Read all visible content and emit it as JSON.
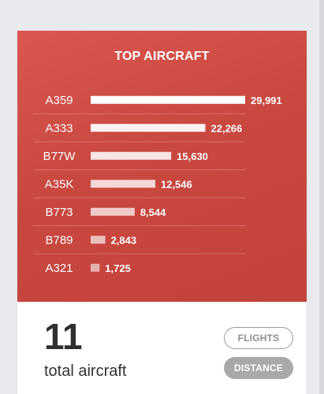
{
  "chart": {
    "title": "TOP AIRCRAFT"
  },
  "chart_data": {
    "type": "bar",
    "orientation": "horizontal",
    "title": "TOP AIRCRAFT",
    "categories": [
      "A359",
      "A333",
      "B77W",
      "A35K",
      "B773",
      "B789",
      "A321"
    ],
    "values": [
      29991,
      22266,
      15630,
      12546,
      8544,
      2843,
      1725
    ],
    "value_labels": [
      "29,991",
      "22,266",
      "15,630",
      "12,546",
      "8,544",
      "2,843",
      "1,725"
    ],
    "xlim": [
      0,
      29991
    ],
    "grid": false,
    "legend": "none"
  },
  "colors": {
    "panel": "#c94840",
    "bar": "#ffffff",
    "label": "#ffffff",
    "pill_filled": "#a9a9a9",
    "pill_outline": "#9c9c9c",
    "count_text": "#2f2f2f"
  },
  "summary": {
    "count": "11",
    "label": "total aircraft"
  },
  "toggle": {
    "flights_label": "FLIGHTS",
    "distance_label": "DISTANCE"
  }
}
